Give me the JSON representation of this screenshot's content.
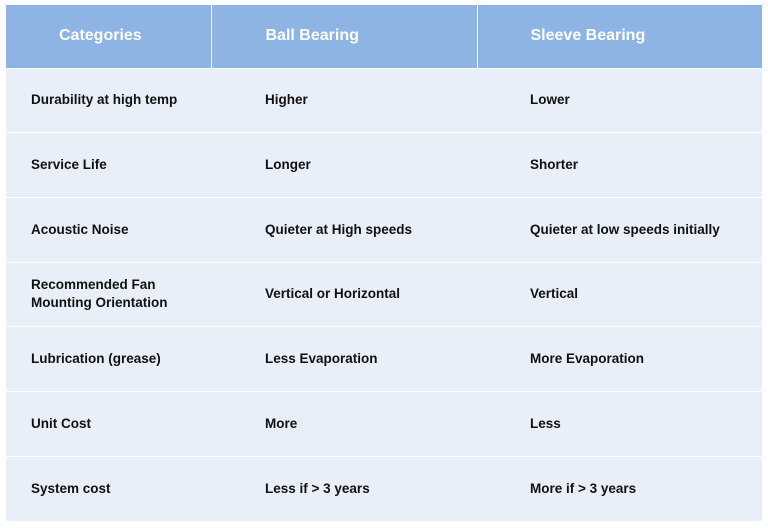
{
  "table": {
    "header": [
      "Categories",
      "Ball Bearing",
      "Sleeve Bearing"
    ],
    "rows": [
      [
        "Durability at high temp",
        "Higher",
        "Lower"
      ],
      [
        "Service Life",
        "Longer",
        "Shorter"
      ],
      [
        "Acoustic Noise",
        "Quieter at High speeds",
        "Quieter at low speeds initially"
      ],
      [
        "Recommended Fan Mounting Orientation",
        "Vertical or Horizontal",
        "Vertical"
      ],
      [
        "Lubrication (grease)",
        "Less Evaporation",
        "More Evaporation"
      ],
      [
        "Unit Cost",
        "More",
        "Less"
      ],
      [
        "System cost",
        "Less if > 3 years",
        "More if > 3 years"
      ]
    ]
  }
}
